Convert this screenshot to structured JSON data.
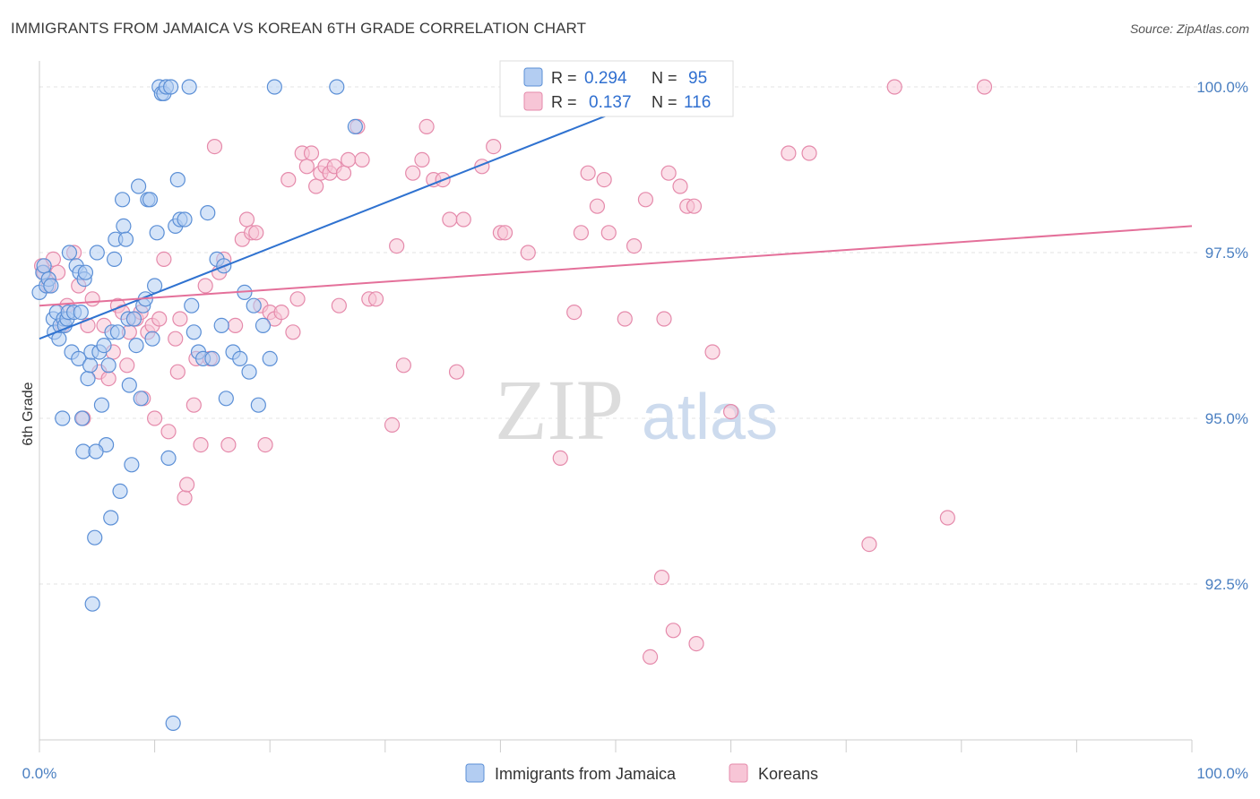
{
  "title": "IMMIGRANTS FROM JAMAICA VS KOREAN 6TH GRADE CORRELATION CHART",
  "source": "Source: ZipAtlas.com",
  "watermark": {
    "zip": "ZIP",
    "atlas": "atlas"
  },
  "colors": {
    "blue_fill": "#b3cdf2",
    "blue_stroke": "#5b8fd6",
    "blue_line": "#2f72d0",
    "pink_fill": "#f7c5d6",
    "pink_stroke": "#e58aab",
    "pink_line": "#e4709a",
    "grid": "#e3e3e3",
    "tick_text": "#4a7fc1"
  },
  "legend_top": {
    "rows": [
      {
        "r_label": "R = ",
        "r_value": "0.294",
        "n_label": "N = ",
        "n_value": "95"
      },
      {
        "r_label": "R = ",
        "r_value": "0.137",
        "n_label": "N = ",
        "n_value": "116"
      }
    ]
  },
  "legend_bottom": {
    "items": [
      "Immigrants from Jamaica",
      "Koreans"
    ]
  },
  "chart_data": {
    "type": "scatter",
    "ylabel": "6th Grade",
    "xlabel": "",
    "x_tick_labels": [
      "0.0%",
      "100.0%"
    ],
    "y_tick_labels": [
      "100.0%",
      "97.5%",
      "95.0%",
      "92.5%"
    ],
    "xlim": [
      0,
      100
    ],
    "ylim": [
      90.3,
      100.3
    ],
    "y_gridlines": [
      100.0,
      97.5,
      95.0,
      92.5
    ],
    "grid": true,
    "legend_position": "top-center",
    "series": [
      {
        "name": "Immigrants from Jamaica",
        "color": "#5b8fd6",
        "fit_line": {
          "x": [
            0,
            57
          ],
          "y": [
            96.2,
            100.1
          ]
        },
        "points": [
          [
            0.0,
            96.9
          ],
          [
            0.3,
            97.2
          ],
          [
            0.4,
            97.3
          ],
          [
            0.6,
            97.0
          ],
          [
            0.8,
            97.1
          ],
          [
            1.0,
            97.0
          ],
          [
            1.2,
            96.5
          ],
          [
            1.3,
            96.3
          ],
          [
            1.5,
            96.6
          ],
          [
            1.7,
            96.2
          ],
          [
            1.8,
            96.4
          ],
          [
            2.0,
            95.0
          ],
          [
            2.1,
            96.5
          ],
          [
            2.2,
            96.4
          ],
          [
            2.4,
            96.5
          ],
          [
            2.5,
            96.6
          ],
          [
            2.6,
            97.5
          ],
          [
            2.8,
            96.0
          ],
          [
            3.0,
            96.6
          ],
          [
            3.2,
            97.3
          ],
          [
            3.4,
            95.9
          ],
          [
            3.5,
            97.2
          ],
          [
            3.6,
            96.6
          ],
          [
            3.7,
            95.0
          ],
          [
            3.8,
            94.5
          ],
          [
            3.9,
            97.1
          ],
          [
            4.0,
            97.2
          ],
          [
            4.2,
            95.6
          ],
          [
            4.4,
            95.8
          ],
          [
            4.5,
            96.0
          ],
          [
            4.6,
            92.2
          ],
          [
            4.8,
            93.2
          ],
          [
            5.0,
            97.5
          ],
          [
            5.2,
            96.0
          ],
          [
            5.4,
            95.2
          ],
          [
            5.6,
            96.1
          ],
          [
            5.8,
            94.6
          ],
          [
            6.0,
            95.8
          ],
          [
            6.2,
            93.5
          ],
          [
            6.3,
            96.3
          ],
          [
            6.5,
            97.4
          ],
          [
            6.6,
            97.7
          ],
          [
            6.8,
            96.3
          ],
          [
            7.0,
            93.9
          ],
          [
            7.2,
            98.3
          ],
          [
            7.3,
            97.9
          ],
          [
            7.5,
            97.7
          ],
          [
            7.7,
            96.5
          ],
          [
            7.8,
            95.5
          ],
          [
            8.0,
            94.3
          ],
          [
            8.2,
            96.5
          ],
          [
            8.4,
            96.1
          ],
          [
            8.6,
            98.5
          ],
          [
            8.8,
            95.3
          ],
          [
            9.0,
            96.7
          ],
          [
            9.2,
            96.8
          ],
          [
            9.4,
            98.3
          ],
          [
            9.6,
            98.3
          ],
          [
            9.8,
            96.2
          ],
          [
            10.0,
            97.0
          ],
          [
            10.2,
            97.8
          ],
          [
            10.4,
            100.0
          ],
          [
            10.6,
            99.9
          ],
          [
            10.8,
            99.9
          ],
          [
            11.0,
            100.0
          ],
          [
            11.2,
            94.4
          ],
          [
            11.4,
            100.0
          ],
          [
            11.6,
            90.4
          ],
          [
            11.8,
            97.9
          ],
          [
            12.0,
            98.6
          ],
          [
            12.2,
            98.0
          ],
          [
            12.6,
            98.0
          ],
          [
            13.0,
            100.0
          ],
          [
            13.2,
            96.7
          ],
          [
            13.4,
            96.3
          ],
          [
            13.8,
            96.0
          ],
          [
            14.2,
            95.9
          ],
          [
            14.6,
            98.1
          ],
          [
            15.0,
            95.9
          ],
          [
            15.4,
            97.4
          ],
          [
            15.8,
            96.4
          ],
          [
            16.0,
            97.3
          ],
          [
            16.2,
            95.3
          ],
          [
            16.8,
            96.0
          ],
          [
            17.4,
            95.9
          ],
          [
            17.8,
            96.9
          ],
          [
            18.2,
            95.7
          ],
          [
            18.6,
            96.7
          ],
          [
            19.0,
            95.2
          ],
          [
            19.4,
            96.4
          ],
          [
            20.0,
            95.9
          ],
          [
            20.4,
            100.0
          ],
          [
            25.8,
            100.0
          ],
          [
            27.4,
            99.4
          ],
          [
            4.9,
            94.5
          ]
        ]
      },
      {
        "name": "Koreans",
        "color": "#e58aab",
        "fit_line": {
          "x": [
            0,
            100
          ],
          "y": [
            96.7,
            97.9
          ]
        },
        "points": [
          [
            0.2,
            97.3
          ],
          [
            0.4,
            97.2
          ],
          [
            0.8,
            97.0
          ],
          [
            1.2,
            97.4
          ],
          [
            1.6,
            97.2
          ],
          [
            2.0,
            96.4
          ],
          [
            2.4,
            96.7
          ],
          [
            3.0,
            97.5
          ],
          [
            3.4,
            97.0
          ],
          [
            3.8,
            95.0
          ],
          [
            4.2,
            96.4
          ],
          [
            4.6,
            96.8
          ],
          [
            5.2,
            95.7
          ],
          [
            5.6,
            96.4
          ],
          [
            6.0,
            95.6
          ],
          [
            6.4,
            96.0
          ],
          [
            6.8,
            96.7
          ],
          [
            7.2,
            96.6
          ],
          [
            7.6,
            95.8
          ],
          [
            7.8,
            96.3
          ],
          [
            8.4,
            96.5
          ],
          [
            8.8,
            96.6
          ],
          [
            9.0,
            95.3
          ],
          [
            9.4,
            96.3
          ],
          [
            9.8,
            96.4
          ],
          [
            10.0,
            95.0
          ],
          [
            10.4,
            96.5
          ],
          [
            10.8,
            97.4
          ],
          [
            11.2,
            94.8
          ],
          [
            11.8,
            96.2
          ],
          [
            12.0,
            95.7
          ],
          [
            12.2,
            96.5
          ],
          [
            12.6,
            93.8
          ],
          [
            12.8,
            94.0
          ],
          [
            13.4,
            95.2
          ],
          [
            13.6,
            95.9
          ],
          [
            14.0,
            94.6
          ],
          [
            14.4,
            97.0
          ],
          [
            14.8,
            95.9
          ],
          [
            15.2,
            99.1
          ],
          [
            15.6,
            97.2
          ],
          [
            16.0,
            97.4
          ],
          [
            16.4,
            94.6
          ],
          [
            17.0,
            96.4
          ],
          [
            17.6,
            97.7
          ],
          [
            18.0,
            98.0
          ],
          [
            18.4,
            97.8
          ],
          [
            18.8,
            97.8
          ],
          [
            19.2,
            96.7
          ],
          [
            19.6,
            94.6
          ],
          [
            20.0,
            96.6
          ],
          [
            20.4,
            96.5
          ],
          [
            21.0,
            96.6
          ],
          [
            21.6,
            98.6
          ],
          [
            22.0,
            96.3
          ],
          [
            22.4,
            96.8
          ],
          [
            22.8,
            99.0
          ],
          [
            23.2,
            98.8
          ],
          [
            23.6,
            99.0
          ],
          [
            24.0,
            98.5
          ],
          [
            24.4,
            98.7
          ],
          [
            24.8,
            98.8
          ],
          [
            25.2,
            98.7
          ],
          [
            25.6,
            98.8
          ],
          [
            26.0,
            96.7
          ],
          [
            26.4,
            98.7
          ],
          [
            26.8,
            98.9
          ],
          [
            27.6,
            99.4
          ],
          [
            28.0,
            98.9
          ],
          [
            28.6,
            96.8
          ],
          [
            29.2,
            96.8
          ],
          [
            30.6,
            94.9
          ],
          [
            31.0,
            97.6
          ],
          [
            31.6,
            95.8
          ],
          [
            32.4,
            98.7
          ],
          [
            33.2,
            98.9
          ],
          [
            33.6,
            99.4
          ],
          [
            34.2,
            98.6
          ],
          [
            35.0,
            98.6
          ],
          [
            35.6,
            98.0
          ],
          [
            36.2,
            95.7
          ],
          [
            36.8,
            98.0
          ],
          [
            38.4,
            98.8
          ],
          [
            39.4,
            99.1
          ],
          [
            40.0,
            97.8
          ],
          [
            40.4,
            97.8
          ],
          [
            42.4,
            97.5
          ],
          [
            44.6,
            100.0
          ],
          [
            45.2,
            94.4
          ],
          [
            46.4,
            96.6
          ],
          [
            47.0,
            97.8
          ],
          [
            47.6,
            98.7
          ],
          [
            48.4,
            98.2
          ],
          [
            49.0,
            98.6
          ],
          [
            49.4,
            97.8
          ],
          [
            50.8,
            96.5
          ],
          [
            51.6,
            97.6
          ],
          [
            52.6,
            98.3
          ],
          [
            54.2,
            96.5
          ],
          [
            54.6,
            98.7
          ],
          [
            55.6,
            98.5
          ],
          [
            56.2,
            98.2
          ],
          [
            56.8,
            98.2
          ],
          [
            58.4,
            96.0
          ],
          [
            60.0,
            95.1
          ],
          [
            65.0,
            99.0
          ],
          [
            66.8,
            99.0
          ],
          [
            72.0,
            93.1
          ],
          [
            74.2,
            100.0
          ],
          [
            78.8,
            93.5
          ],
          [
            82.0,
            100.0
          ],
          [
            55.0,
            91.8
          ],
          [
            57.0,
            91.6
          ],
          [
            54.0,
            92.6
          ],
          [
            53.0,
            91.4
          ]
        ]
      }
    ]
  }
}
